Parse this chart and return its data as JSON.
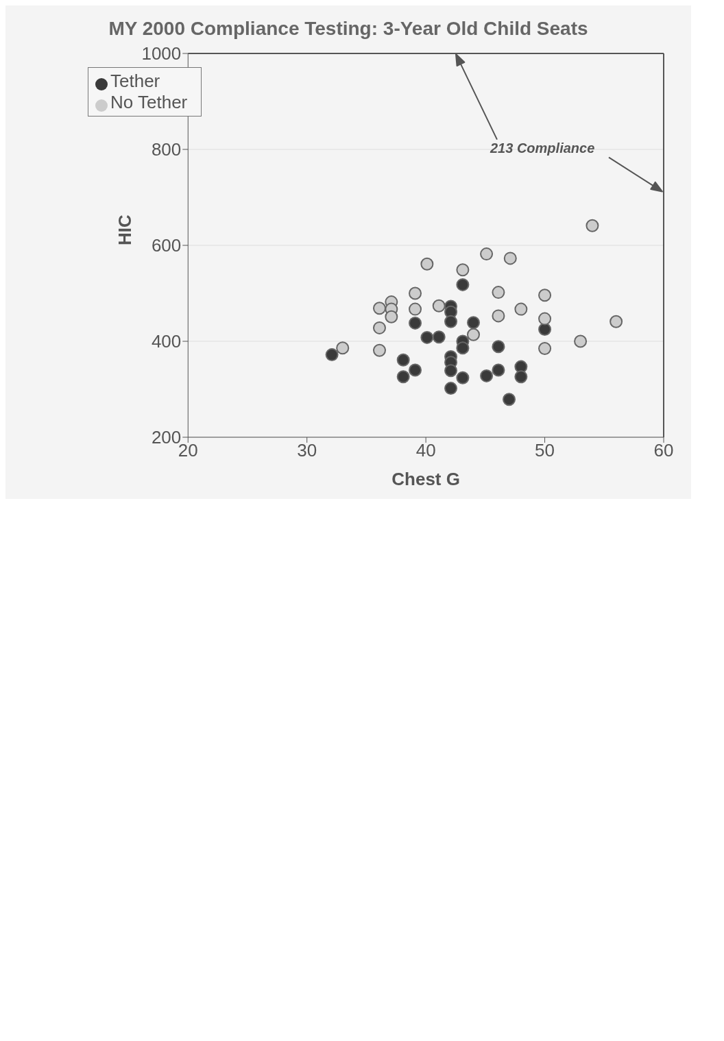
{
  "chart_data": {
    "type": "scatter",
    "title": "MY 2000 Compliance Testing: 3-Year Old Child Seats",
    "xlabel": "Chest G",
    "ylabel": "HIC",
    "annotations": [
      "213 Compliance"
    ],
    "xlim": [
      20,
      60
    ],
    "xticks": [
      20,
      30,
      40,
      50,
      60
    ],
    "ylim": [
      200,
      1000
    ],
    "yticks": [
      200,
      400,
      600,
      800,
      1000
    ],
    "grid": "y",
    "legend": "top left",
    "marker": "circle",
    "ref_lines": [
      {
        "axis": "y",
        "value": 1000,
        "color": "#555555"
      },
      {
        "axis": "x",
        "value": 60,
        "color": "#555555"
      }
    ],
    "series": [
      {
        "name": "Tether",
        "color": "#3a3a3a",
        "x": [
          50,
          46.1,
          46.1,
          48,
          48,
          47,
          45.1,
          44,
          43.1,
          43.1,
          43.1,
          43.1,
          42.1,
          42.1,
          42.1,
          42.1,
          42.1,
          42.1,
          42.1,
          41.1,
          40.1,
          39.1,
          39.1,
          38.1,
          38.1,
          32.1
        ],
        "values": [
          425,
          389,
          340,
          347,
          326,
          279,
          328,
          439,
          518,
          400,
          386,
          324,
          473,
          461,
          441,
          368,
          356,
          339,
          302,
          409,
          408,
          438,
          340,
          361,
          326,
          372
        ]
      },
      {
        "name": "No Tether",
        "color": "#cccccc",
        "x": [
          56,
          54,
          53,
          50,
          50,
          50,
          48,
          45.1,
          46.1,
          46.1,
          47.1,
          44,
          43.1,
          41.1,
          40.1,
          39.1,
          39.1,
          37.1,
          37.1,
          37.1,
          36.1,
          36.1,
          36.1,
          33
        ],
        "values": [
          441,
          641,
          400,
          496,
          447,
          385,
          467,
          582,
          502,
          453,
          573,
          414,
          549,
          474,
          561,
          500,
          467,
          482,
          467,
          451,
          469,
          428,
          381,
          386
        ]
      }
    ]
  }
}
